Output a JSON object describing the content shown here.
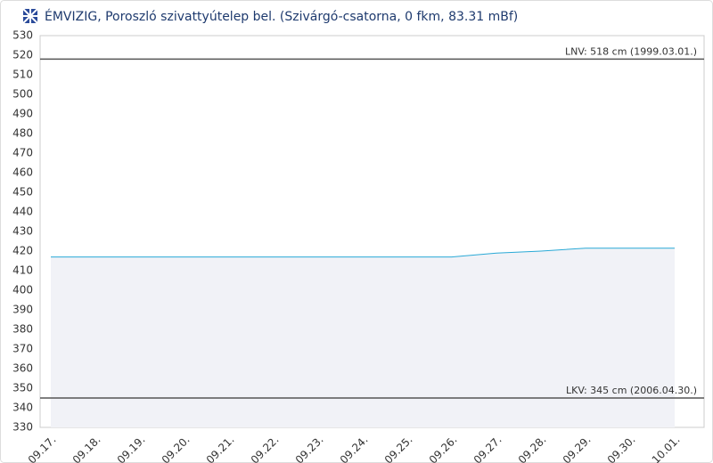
{
  "chart_data": {
    "type": "line",
    "title": "ÉMVIZIG, Poroszló szivattyútelep bel. (Szivárgó-csatorna, 0 fkm, 83.31 mBf)",
    "categories": [
      "09.17.",
      "09.18.",
      "09.19.",
      "09.20.",
      "09.21.",
      "09.22.",
      "09.23.",
      "09.24.",
      "09.25.",
      "09.26.",
      "09.27.",
      "09.28.",
      "09.29.",
      "09.30.",
      "10.01."
    ],
    "series": [
      {
        "color": "#29a9d6",
        "area_color": "#f1f2f7",
        "values": [
          417,
          417,
          417,
          417,
          417,
          417,
          417,
          417,
          417,
          417,
          419,
          420,
          421.5,
          421.5,
          421.5
        ]
      }
    ],
    "ylim": [
      330,
      530
    ],
    "yticks": [
      330,
      340,
      350,
      360,
      370,
      380,
      390,
      400,
      410,
      420,
      430,
      440,
      450,
      460,
      470,
      480,
      490,
      500,
      510,
      520,
      530
    ],
    "grid": false,
    "reference_lines": [
      {
        "value": 518,
        "label": "LNV: 518 cm (1999.03.01.)"
      },
      {
        "value": 345,
        "label": "LKV: 345 cm (2006.04.30.)"
      }
    ]
  }
}
